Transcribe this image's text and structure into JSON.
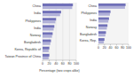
{
  "chart_data": [
    {
      "type": "bar",
      "orientation": "horizontal",
      "categories": [
        "China",
        "India",
        "Philippines",
        "India",
        "Norway",
        "Bangladesh",
        "Korea, Republic of",
        "Taiwan Province of China"
      ],
      "series": [
        {
          "color": "#7070b8",
          "values": [
            90,
            55,
            40,
            35,
            30,
            25,
            20,
            20
          ]
        },
        {
          "color": "#b0b0d8",
          "values": [
            88,
            52,
            38,
            33,
            28,
            23,
            18,
            18
          ]
        }
      ],
      "xlabel": "Percentage (two crops alike)",
      "xlim": [
        0,
        100
      ],
      "xticks": [
        0,
        20,
        40,
        60,
        80,
        100
      ],
      "grid": true
    },
    {
      "type": "bar",
      "orientation": "horizontal",
      "categories": [
        "China",
        "Philippines",
        "India",
        "Norway",
        "Bangladesh",
        "Korea, Rep."
      ],
      "series": [
        {
          "color": "#7070b8",
          "values": [
            90,
            40,
            35,
            30,
            25,
            20
          ]
        },
        {
          "color": "#b0b0d8",
          "values": [
            88,
            38,
            33,
            28,
            23,
            18
          ]
        }
      ],
      "xlim": [
        0,
        100
      ],
      "xticks": [
        0,
        20,
        40,
        60,
        80,
        100
      ],
      "grid": false
    }
  ]
}
